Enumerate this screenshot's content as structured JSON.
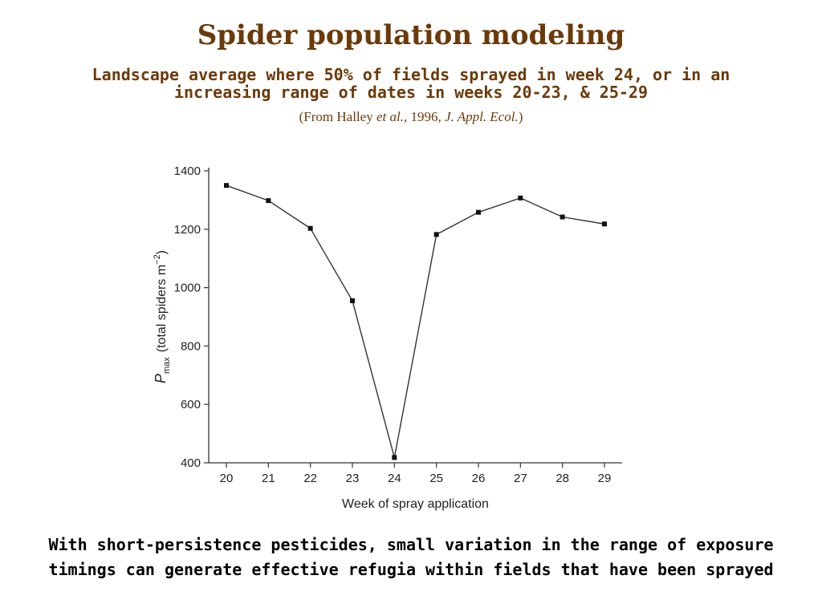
{
  "slide": {
    "title": "Spider population modeling",
    "subtitle": "Landscape average where 50% of fields sprayed in week 24, or in an increasing range of dates in weeks 20-23, & 25-29",
    "citation": {
      "prefix": "(From Halley ",
      "et_al": "et al.",
      "middle": ", 1996, ",
      "journal": "J. Appl. Ecol.",
      "suffix": ")"
    },
    "caption": "With short-persistence pesticides, small variation in the range of exposure timings can generate effective refugia within fields that have been sprayed"
  },
  "colors": {
    "heading": "#6b3a0a",
    "caption": "#000000",
    "plot_line": "#333333"
  },
  "chart_data": {
    "type": "line",
    "x": [
      20,
      21,
      22,
      23,
      24,
      25,
      26,
      27,
      28,
      29
    ],
    "series": [
      {
        "values": [
          1350,
          1298,
          1203,
          955,
          418,
          1182,
          1258,
          1307,
          1242,
          1218
        ]
      }
    ],
    "xlabel": "Week of spray application",
    "ylabel_var": "P",
    "ylabel_sub": "max",
    "ylabel_rest": "(total spiders m",
    "ylabel_sup": "−2",
    "ylabel_end": ")",
    "ylim": [
      400,
      1400
    ],
    "yticks": [
      400,
      600,
      800,
      1000,
      1200,
      1400
    ],
    "xticks": [
      "20",
      "21",
      "22",
      "23",
      "24",
      "25",
      "26",
      "27",
      "28",
      "29"
    ],
    "grid": false,
    "legend": "none"
  }
}
